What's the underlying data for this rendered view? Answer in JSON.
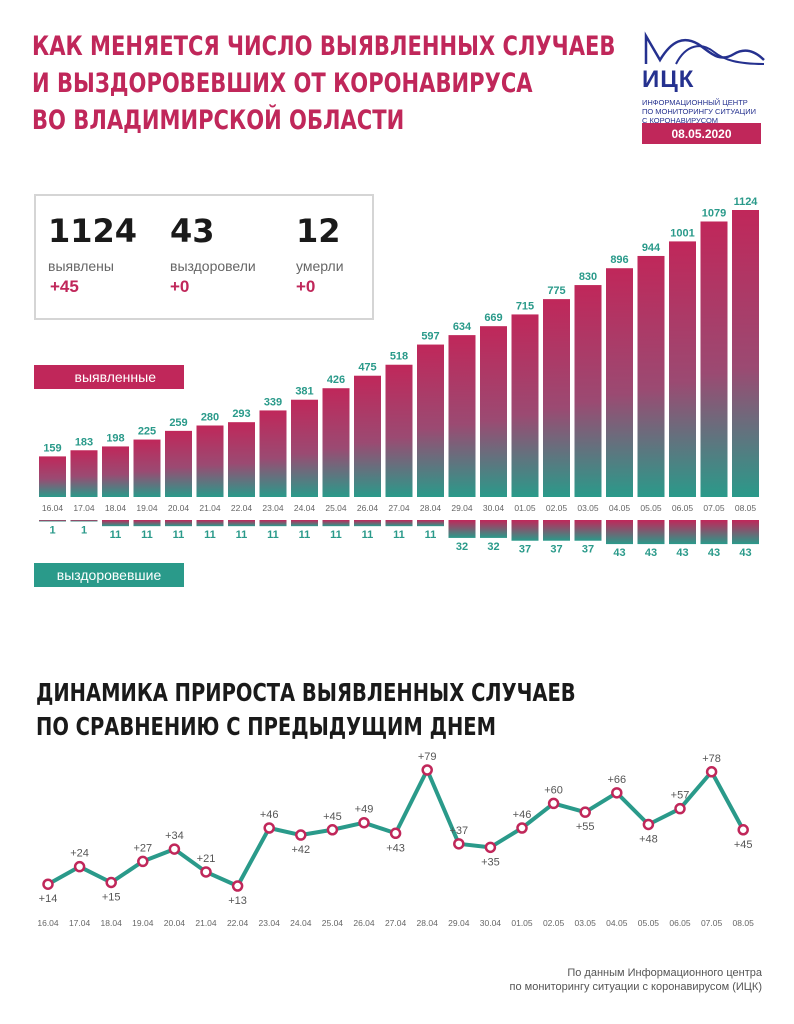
{
  "title_lines": [
    "КАК МЕНЯЕТСЯ ЧИСЛО ВЫЯВЛЕННЫХ СЛУЧАЕВ",
    "И ВЫЗДОРОВЕВШИХ ОТ КОРОНАВИРУСА",
    "ВО ВЛАДИМИРСКОЙ ОБЛАСТИ"
  ],
  "logo": {
    "abbr": "ИЦК",
    "desc_lines": [
      "ИНФОРМАЦИОННЫЙ ЦЕНТР",
      "ПО МОНИТОРИНГУ СИТУАЦИИ",
      "С КОРОНАВИРУСОМ"
    ],
    "color": "#25318f"
  },
  "date": "08.05.2020",
  "stats": [
    {
      "value": "1124",
      "label": "выявлены",
      "delta": "+45"
    },
    {
      "value": "43",
      "label": "выздоровели",
      "delta": "+0"
    },
    {
      "value": "12",
      "label": "умерли",
      "delta": "+0"
    }
  ],
  "labels": {
    "detected": "выявленные",
    "recovered": "выздоровевшие"
  },
  "colors": {
    "accent": "#c0275a",
    "teal": "#2a9a8a",
    "dark": "#1a1a1a"
  },
  "dynamics_title_lines": [
    "ДИНАМИКА ПРИРОСТА ВЫЯВЛЕННЫХ СЛУЧАЕВ",
    "ПО СРАВНЕНИЮ С ПРЕДЫДУЩИМ ДНЕМ"
  ],
  "source_lines": [
    "По данным Информационного центра",
    "по мониторингу ситуации с коронавирусом (ИЦК)"
  ],
  "chart_data": [
    {
      "type": "bar",
      "categories": [
        "16.04",
        "17.04",
        "18.04",
        "19.04",
        "20.04",
        "21.04",
        "22.04",
        "23.04",
        "24.04",
        "25.04",
        "26.04",
        "27.04",
        "28.04",
        "29.04",
        "30.04",
        "01.05",
        "02.05",
        "03.05",
        "04.05",
        "05.05",
        "06.05",
        "07.05",
        "08.05"
      ],
      "series": [
        {
          "name": "выявленные",
          "values": [
            159,
            183,
            198,
            225,
            259,
            280,
            293,
            339,
            381,
            426,
            475,
            518,
            597,
            634,
            669,
            715,
            775,
            830,
            896,
            944,
            1001,
            1079,
            1124
          ]
        },
        {
          "name": "выздоровевшие",
          "values": [
            1,
            1,
            11,
            11,
            11,
            11,
            11,
            11,
            11,
            11,
            11,
            11,
            11,
            32,
            32,
            37,
            37,
            37,
            43,
            43,
            43,
            43,
            43
          ]
        }
      ]
    },
    {
      "type": "line",
      "x": [
        "16.04",
        "17.04",
        "18.04",
        "19.04",
        "20.04",
        "21.04",
        "22.04",
        "23.04",
        "24.04",
        "25.04",
        "26.04",
        "27.04",
        "28.04",
        "29.04",
        "30.04",
        "01.05",
        "02.05",
        "03.05",
        "04.05",
        "05.05",
        "06.05",
        "07.05",
        "08.05"
      ],
      "values": [
        14,
        24,
        15,
        27,
        34,
        21,
        13,
        46,
        42,
        45,
        49,
        43,
        79,
        37,
        35,
        46,
        60,
        55,
        66,
        48,
        57,
        78,
        45
      ],
      "labels": [
        "+14",
        "+24",
        "+15",
        "+27",
        "+34",
        "+21",
        "+13",
        "+46",
        "+42",
        "+45",
        "+49",
        "+43",
        "+79",
        "+37",
        "+35",
        "+46",
        "+60",
        "+55",
        "+66",
        "+48",
        "+57",
        "+78",
        "+45"
      ],
      "title": "ДИНАМИКА ПРИРОСТА ВЫЯВЛЕННЫХ СЛУЧАЕВ ПО СРАВНЕНИЮ С ПРЕДЫДУЩИМ ДНЕМ"
    }
  ]
}
